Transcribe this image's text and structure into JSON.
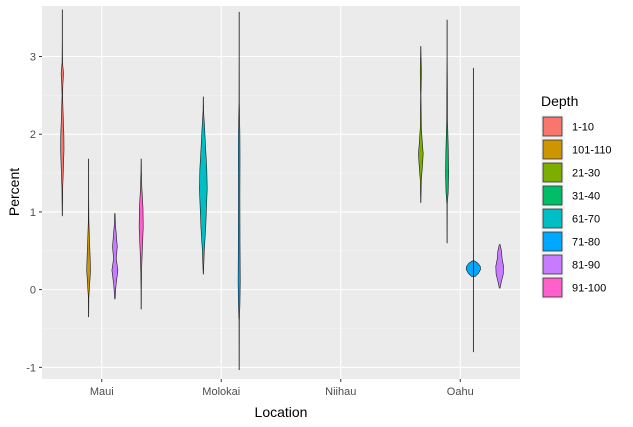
{
  "chart_data": {
    "type": "violin",
    "xlabel": "Location",
    "ylabel": "Percent",
    "categories": [
      "Maui",
      "Molokai",
      "Niihau",
      "Oahu"
    ],
    "ylim": [
      -1.15,
      3.65
    ],
    "yticks": [
      -1,
      0,
      1,
      2,
      3
    ],
    "grid": true,
    "legend": {
      "title": "Depth",
      "position": "right",
      "entries": [
        {
          "name": "1-10",
          "color": "#F8766D"
        },
        {
          "name": "101-110",
          "color": "#CD9600"
        },
        {
          "name": "21-30",
          "color": "#7CAE00"
        },
        {
          "name": "31-40",
          "color": "#00BE67"
        },
        {
          "name": "61-70",
          "color": "#00BFC4"
        },
        {
          "name": "71-80",
          "color": "#00A9FF"
        },
        {
          "name": "81-90",
          "color": "#C77CFF"
        },
        {
          "name": "91-100",
          "color": "#FF61CC"
        }
      ]
    },
    "violins": [
      {
        "location": "Maui",
        "depth": "1-10",
        "offset": -0.33,
        "min": 0.95,
        "max": 3.6,
        "profile": [
          [
            0.95,
            0.002
          ],
          [
            1.3,
            0.006
          ],
          [
            1.55,
            0.018
          ],
          [
            1.8,
            0.028
          ],
          [
            2.0,
            0.026
          ],
          [
            2.2,
            0.016
          ],
          [
            2.5,
            0.004
          ],
          [
            2.65,
            0.01
          ],
          [
            2.78,
            0.02
          ],
          [
            2.92,
            0.004
          ],
          [
            3.2,
            0.002
          ],
          [
            3.6,
            0.002
          ]
        ]
      },
      {
        "location": "Maui",
        "depth": "101-110",
        "offset": -0.11,
        "min": -0.35,
        "max": 1.68,
        "profile": [
          [
            -0.35,
            0.002
          ],
          [
            -0.1,
            0.004
          ],
          [
            0.05,
            0.016
          ],
          [
            0.25,
            0.032
          ],
          [
            0.45,
            0.024
          ],
          [
            0.7,
            0.012
          ],
          [
            0.9,
            0.004
          ],
          [
            1.2,
            0.002
          ],
          [
            1.68,
            0.002
          ]
        ]
      },
      {
        "location": "Maui",
        "depth": "81-90",
        "offset": 0.11,
        "min": -0.12,
        "max": 0.98,
        "profile": [
          [
            -0.12,
            0.003
          ],
          [
            0.05,
            0.018
          ],
          [
            0.25,
            0.05
          ],
          [
            0.4,
            0.022
          ],
          [
            0.55,
            0.04
          ],
          [
            0.72,
            0.022
          ],
          [
            0.85,
            0.008
          ],
          [
            0.98,
            0.003
          ]
        ]
      },
      {
        "location": "Maui",
        "depth": "91-100",
        "offset": 0.33,
        "min": -0.25,
        "max": 1.68,
        "profile": [
          [
            -0.25,
            0.002
          ],
          [
            0.0,
            0.003
          ],
          [
            0.22,
            0.006
          ],
          [
            0.5,
            0.018
          ],
          [
            0.8,
            0.034
          ],
          [
            1.05,
            0.03
          ],
          [
            1.3,
            0.012
          ],
          [
            1.5,
            0.004
          ],
          [
            1.68,
            0.002
          ]
        ]
      },
      {
        "location": "Molokai",
        "depth": "61-70",
        "offset": -0.15,
        "min": 0.2,
        "max": 2.48,
        "profile": [
          [
            0.2,
            0.002
          ],
          [
            0.5,
            0.016
          ],
          [
            0.8,
            0.04
          ],
          [
            1.1,
            0.055
          ],
          [
            1.3,
            0.065
          ],
          [
            1.55,
            0.058
          ],
          [
            1.8,
            0.04
          ],
          [
            2.1,
            0.02
          ],
          [
            2.3,
            0.004
          ],
          [
            2.48,
            0.002
          ]
        ]
      },
      {
        "location": "Molokai",
        "depth": "71-80",
        "offset": 0.15,
        "min": -1.03,
        "max": 3.57,
        "profile": [
          [
            -1.03,
            0.002
          ],
          [
            -0.4,
            0.003
          ],
          [
            -0.2,
            0.012
          ],
          [
            0.1,
            0.018
          ],
          [
            0.6,
            0.014
          ],
          [
            1.2,
            0.012
          ],
          [
            1.7,
            0.014
          ],
          [
            2.0,
            0.012
          ],
          [
            2.4,
            0.003
          ],
          [
            3.0,
            0.002
          ],
          [
            3.57,
            0.002
          ]
        ]
      },
      {
        "location": "Oahu",
        "depth": "21-30",
        "offset": -0.33,
        "min": 1.12,
        "max": 3.13,
        "profile": [
          [
            1.12,
            0.002
          ],
          [
            1.4,
            0.008
          ],
          [
            1.6,
            0.028
          ],
          [
            1.75,
            0.04
          ],
          [
            1.9,
            0.024
          ],
          [
            2.1,
            0.008
          ],
          [
            2.5,
            0.003
          ],
          [
            2.8,
            0.01
          ],
          [
            3.0,
            0.004
          ],
          [
            3.13,
            0.002
          ]
        ]
      },
      {
        "location": "Oahu",
        "depth": "31-40",
        "offset": -0.11,
        "min": 0.6,
        "max": 3.47,
        "profile": [
          [
            0.6,
            0.002
          ],
          [
            1.1,
            0.003
          ],
          [
            1.25,
            0.018
          ],
          [
            1.5,
            0.026
          ],
          [
            1.8,
            0.02
          ],
          [
            2.2,
            0.006
          ],
          [
            2.7,
            0.004
          ],
          [
            3.0,
            0.002
          ],
          [
            3.47,
            0.002
          ]
        ]
      },
      {
        "location": "Oahu",
        "depth": "71-80",
        "offset": 0.11,
        "min": 0.17,
        "max": 0.37,
        "profile": [
          [
            0.17,
            0.03
          ],
          [
            0.21,
            0.085
          ],
          [
            0.26,
            0.12
          ],
          [
            0.3,
            0.115
          ],
          [
            0.34,
            0.075
          ],
          [
            0.37,
            0.02
          ]
        ]
      },
      {
        "location": "Oahu",
        "depth": "91-100",
        "offset": 0.11,
        "min": -0.8,
        "max": 2.85,
        "profile": [
          [
            -0.8,
            0.002
          ],
          [
            0.0,
            0.002
          ],
          [
            1.0,
            0.002
          ],
          [
            2.0,
            0.002
          ],
          [
            2.85,
            0.002
          ]
        ]
      },
      {
        "location": "Oahu",
        "depth": "81-90",
        "offset": 0.33,
        "min": 0.02,
        "max": 0.58,
        "profile": [
          [
            0.02,
            0.006
          ],
          [
            0.1,
            0.028
          ],
          [
            0.2,
            0.06
          ],
          [
            0.3,
            0.065
          ],
          [
            0.4,
            0.04
          ],
          [
            0.5,
            0.03
          ],
          [
            0.58,
            0.006
          ]
        ]
      }
    ]
  }
}
